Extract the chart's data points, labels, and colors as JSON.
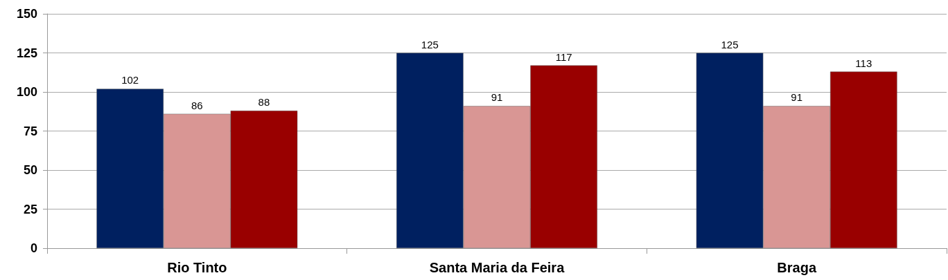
{
  "chart_data": {
    "type": "bar",
    "categories": [
      "Rio Tinto",
      "Santa Maria da Feira",
      "Braga"
    ],
    "series": [
      {
        "color": "#002060",
        "values": [
          102,
          125,
          125
        ]
      },
      {
        "color": "#d99694",
        "values": [
          86,
          91,
          91
        ]
      },
      {
        "color": "#990000",
        "values": [
          88,
          117,
          113
        ]
      }
    ],
    "ylim": [
      0,
      150
    ],
    "yticks": [
      0,
      25,
      50,
      75,
      100,
      125,
      150
    ],
    "grid": "y",
    "data_labels": true
  }
}
